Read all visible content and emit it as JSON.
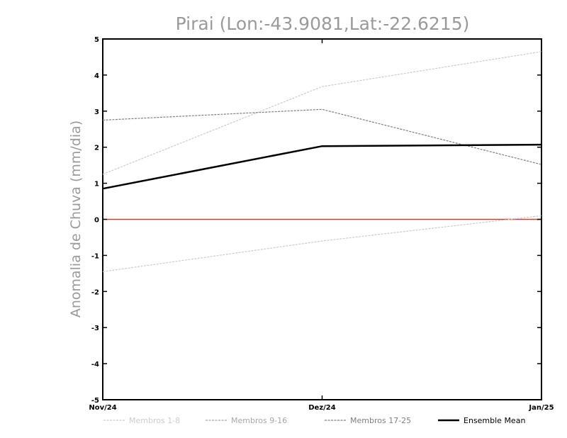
{
  "chart_data": {
    "type": "line",
    "title": "Pirai (Lon:-43.9081,Lat:-22.6215)",
    "xlabel": "",
    "ylabel": "Anomalia de Chuva (mm/dia)",
    "categories": [
      "Nov/24",
      "Dez/24",
      "Jan/25"
    ],
    "ylim": [
      -5,
      5
    ],
    "yticks": [
      "-5",
      "-4",
      "-3",
      "-2",
      "-1",
      "0",
      "1",
      "2",
      "3",
      "4",
      "5"
    ],
    "grid": false,
    "legend_position": "bottom",
    "reference_line": {
      "value": 0,
      "color": "#e8302a"
    },
    "series": [
      {
        "name": "Membros 1-8",
        "values": [
          1.25,
          3.68,
          4.65
        ],
        "color": "#cccccc",
        "style": "dashed"
      },
      {
        "name": "Membros 1-8",
        "values": [
          -1.45,
          -0.6,
          0.1
        ],
        "color": "#cccccc",
        "style": "dashed"
      },
      {
        "name": "Membros 9-16",
        "values": [
          null,
          null,
          null
        ],
        "color": "#a8a8a8",
        "style": "dashed"
      },
      {
        "name": "Membros 17-25",
        "values": [
          2.75,
          3.05,
          1.52
        ],
        "color": "#808080",
        "style": "dashed"
      },
      {
        "name": "Ensemble Mean",
        "values": [
          0.85,
          2.03,
          2.07
        ],
        "color": "#000000",
        "style": "solid"
      }
    ],
    "legend": [
      {
        "label": "Membros 1-8",
        "color": "#cccccc",
        "style": "dashed"
      },
      {
        "label": "Membros 9-16",
        "color": "#a8a8a8",
        "style": "dashed"
      },
      {
        "label": "Membros 17-25",
        "color": "#808080",
        "style": "dashed"
      },
      {
        "label": "Ensemble Mean",
        "color": "#000000",
        "style": "solid"
      }
    ]
  }
}
